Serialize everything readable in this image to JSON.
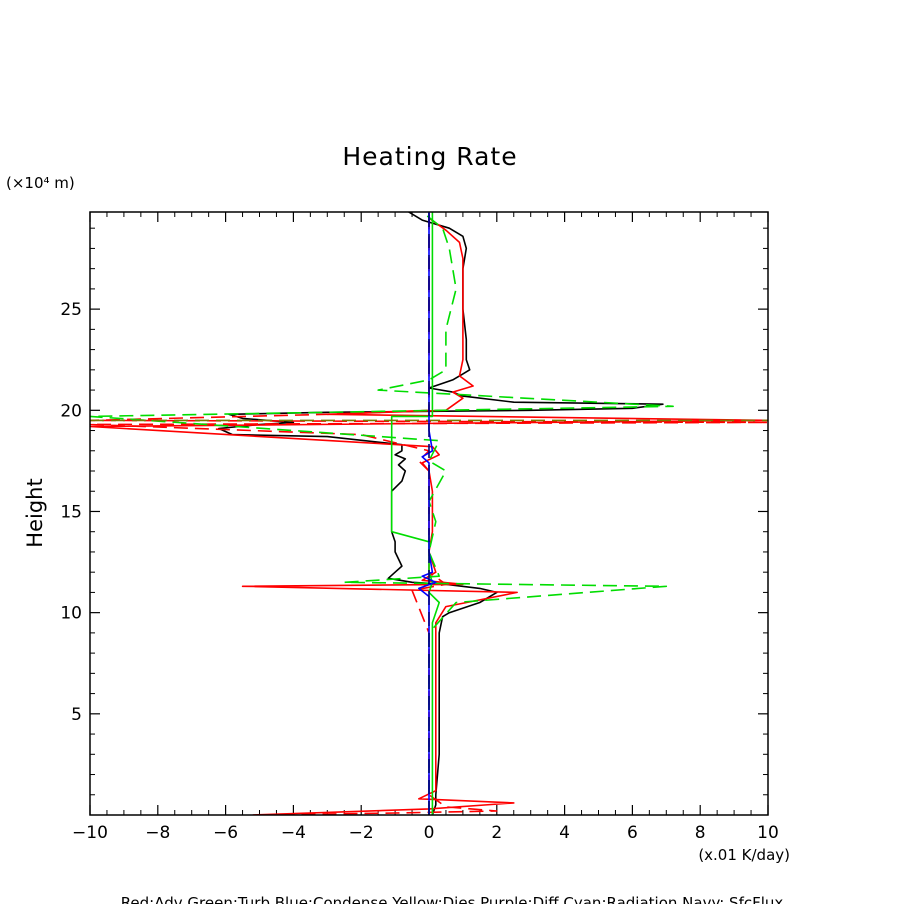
{
  "chart_data": {
    "type": "line",
    "title": "Heating Rate",
    "ylabel": "Height",
    "yunit": "(×10⁴ m)",
    "xunit": "(x.01 K/day)",
    "xlim": [
      -10,
      10
    ],
    "ylim": [
      0,
      29.8
    ],
    "xticks": [
      -10,
      -8,
      -6,
      -4,
      -2,
      0,
      2,
      4,
      6,
      8,
      10
    ],
    "xtick_labels": [
      "−10",
      "−8",
      "−6",
      "−4",
      "−2",
      "0",
      "2",
      "4",
      "6",
      "8",
      "10"
    ],
    "yticks": [
      5,
      10,
      15,
      20,
      25
    ],
    "ytick_labels": [
      "5",
      "10",
      "15",
      "20",
      "25"
    ],
    "footer": "Red:Adv  Green:Turb  Blue:Condense  Yellow:Dies  Purple:Diff  Cyan:Radiation  Navy: SfcFlux",
    "series": [
      {
        "name": "black-solid",
        "color": "#000000",
        "dash": "solid",
        "points": [
          [
            0.1,
            0
          ],
          [
            0.2,
            0.5
          ],
          [
            0.2,
            1
          ],
          [
            0.3,
            3
          ],
          [
            0.3,
            6
          ],
          [
            0.3,
            9
          ],
          [
            0.4,
            9.8
          ],
          [
            0.6,
            10
          ],
          [
            1.5,
            10.5
          ],
          [
            2.0,
            11.0
          ],
          [
            1.5,
            11.2
          ],
          [
            0.5,
            11.4
          ],
          [
            -0.5,
            11.5
          ],
          [
            -1.2,
            11.7
          ],
          [
            -1.0,
            12.0
          ],
          [
            -0.8,
            12.3
          ],
          [
            -1.0,
            13.0
          ],
          [
            -1.0,
            13.5
          ],
          [
            -1.1,
            14
          ],
          [
            -1.1,
            15
          ],
          [
            -1.1,
            16
          ],
          [
            -0.8,
            16.5
          ],
          [
            -0.7,
            17.0
          ],
          [
            -0.9,
            17.3
          ],
          [
            -0.7,
            17.6
          ],
          [
            -1.0,
            17.8
          ],
          [
            -0.8,
            18.0
          ],
          [
            -0.8,
            18.3
          ],
          [
            -3.0,
            18.7
          ],
          [
            -5.8,
            18.8
          ],
          [
            -6.2,
            19.1
          ],
          [
            -5.0,
            19.3
          ],
          [
            -4.0,
            19.4
          ],
          [
            -5.5,
            19.6
          ],
          [
            -5.9,
            19.8
          ],
          [
            -3.0,
            19.9
          ],
          [
            3.0,
            20.0
          ],
          [
            6.0,
            20.1
          ],
          [
            6.9,
            20.3
          ],
          [
            2.5,
            20.4
          ],
          [
            1.0,
            20.7
          ],
          [
            0.7,
            20.9
          ],
          [
            0.0,
            21.1
          ],
          [
            0.7,
            21.5
          ],
          [
            1.0,
            21.8
          ],
          [
            1.2,
            22.0
          ],
          [
            1.1,
            22.5
          ],
          [
            1.1,
            23.5
          ],
          [
            1.0,
            25
          ],
          [
            1.0,
            26
          ],
          [
            1.0,
            27
          ],
          [
            1.1,
            28
          ],
          [
            1.0,
            28.6
          ],
          [
            0.6,
            29.0
          ],
          [
            -0.2,
            29.4
          ],
          [
            -0.6,
            29.8
          ]
        ]
      },
      {
        "name": "red-solid",
        "color": "#ff0000",
        "dash": "solid",
        "points": [
          [
            -5.2,
            0
          ],
          [
            0.0,
            0.3
          ],
          [
            2.5,
            0.6
          ],
          [
            -0.3,
            0.8
          ],
          [
            0.2,
            1.2
          ],
          [
            0.2,
            3
          ],
          [
            0.2,
            6
          ],
          [
            0.2,
            9.5
          ],
          [
            0.5,
            10.3
          ],
          [
            2.6,
            11.0
          ],
          [
            -5.5,
            11.3
          ],
          [
            1.0,
            11.4
          ],
          [
            -0.2,
            11.6
          ],
          [
            0.2,
            12
          ],
          [
            0.0,
            13
          ],
          [
            0.1,
            14
          ],
          [
            0.1,
            16
          ],
          [
            0.0,
            17.0
          ],
          [
            -0.2,
            17.4
          ],
          [
            0.3,
            17.8
          ],
          [
            0.1,
            18.2
          ],
          [
            -10,
            19.2
          ],
          [
            10,
            19.5
          ],
          [
            -3.0,
            19.8
          ],
          [
            0.5,
            20.0
          ],
          [
            1.0,
            20.6
          ],
          [
            0.7,
            20.9
          ],
          [
            1.3,
            21.2
          ],
          [
            0.9,
            21.7
          ],
          [
            1.0,
            22.5
          ],
          [
            1.0,
            24
          ],
          [
            1.0,
            26
          ],
          [
            1.0,
            27.5
          ],
          [
            0.9,
            28.3
          ],
          [
            0.5,
            28.9
          ],
          [
            0.0,
            29.5
          ]
        ]
      },
      {
        "name": "red-dashed",
        "color": "#ff0000",
        "dash": "dashed",
        "points": [
          [
            -5.0,
            0
          ],
          [
            -1.0,
            0.1
          ],
          [
            2.0,
            0.2
          ],
          [
            0.5,
            0.4
          ],
          [
            0.0,
            1
          ],
          [
            0.0,
            5
          ],
          [
            0.0,
            9
          ],
          [
            -0.5,
            11.1
          ],
          [
            0.5,
            11.4
          ],
          [
            0.0,
            12
          ],
          [
            0.0,
            17
          ],
          [
            -0.3,
            17.5
          ],
          [
            0.0,
            18
          ],
          [
            -2.0,
            18.8
          ],
          [
            -10,
            19.3
          ],
          [
            10,
            19.4
          ],
          [
            -10,
            19.5
          ],
          [
            -3.0,
            19.8
          ],
          [
            0.0,
            20
          ],
          [
            0.0,
            29.8
          ]
        ]
      },
      {
        "name": "green-solid",
        "color": "#00dd00",
        "dash": "solid",
        "points": [
          [
            0.1,
            0
          ],
          [
            0.1,
            9.5
          ],
          [
            0.3,
            10.5
          ],
          [
            0.0,
            11
          ],
          [
            0.1,
            11.5
          ],
          [
            0.0,
            12
          ],
          [
            0.0,
            13.5
          ],
          [
            -1.1,
            14
          ],
          [
            -1.1,
            19.7
          ],
          [
            0.1,
            19.7
          ],
          [
            0.1,
            29.8
          ]
        ]
      },
      {
        "name": "green-dashed",
        "color": "#00dd00",
        "dash": "dashed",
        "points": [
          [
            0.0,
            0
          ],
          [
            0.0,
            9
          ],
          [
            0.8,
            10.5
          ],
          [
            7.0,
            11.3
          ],
          [
            -2.5,
            11.5
          ],
          [
            0.3,
            11.8
          ],
          [
            0.0,
            13
          ],
          [
            0.2,
            14.5
          ],
          [
            0.0,
            15.5
          ],
          [
            0.5,
            17.0
          ],
          [
            0.0,
            17.5
          ],
          [
            0.3,
            18.5
          ],
          [
            -10,
            19.7
          ],
          [
            7.2,
            20.2
          ],
          [
            -1.5,
            21.0
          ],
          [
            0.0,
            21.5
          ],
          [
            0.5,
            22
          ],
          [
            0.5,
            24
          ],
          [
            0.8,
            26
          ],
          [
            0.6,
            28
          ],
          [
            0.4,
            29.0
          ],
          [
            -0.2,
            29.8
          ]
        ]
      },
      {
        "name": "olive-dashed",
        "color": "#7a7a00",
        "dash": "dashed",
        "points": [
          [
            -10,
            19.5
          ],
          [
            10,
            19.5
          ]
        ]
      },
      {
        "name": "blue-solid",
        "color": "#0000ff",
        "dash": "solid",
        "points": [
          [
            0.0,
            0
          ],
          [
            0.0,
            10.8
          ],
          [
            -0.3,
            11.2
          ],
          [
            0.2,
            11.5
          ],
          [
            -0.2,
            11.8
          ],
          [
            0.1,
            12
          ],
          [
            0.0,
            13
          ],
          [
            0.0,
            17.4
          ],
          [
            -0.2,
            17.7
          ],
          [
            0.1,
            18
          ],
          [
            0.0,
            19
          ],
          [
            0.0,
            29.8
          ]
        ]
      },
      {
        "name": "navy-dashed",
        "color": "#000080",
        "dash": "dashed",
        "points": [
          [
            0.0,
            0
          ],
          [
            0.0,
            29.8
          ]
        ]
      }
    ]
  }
}
